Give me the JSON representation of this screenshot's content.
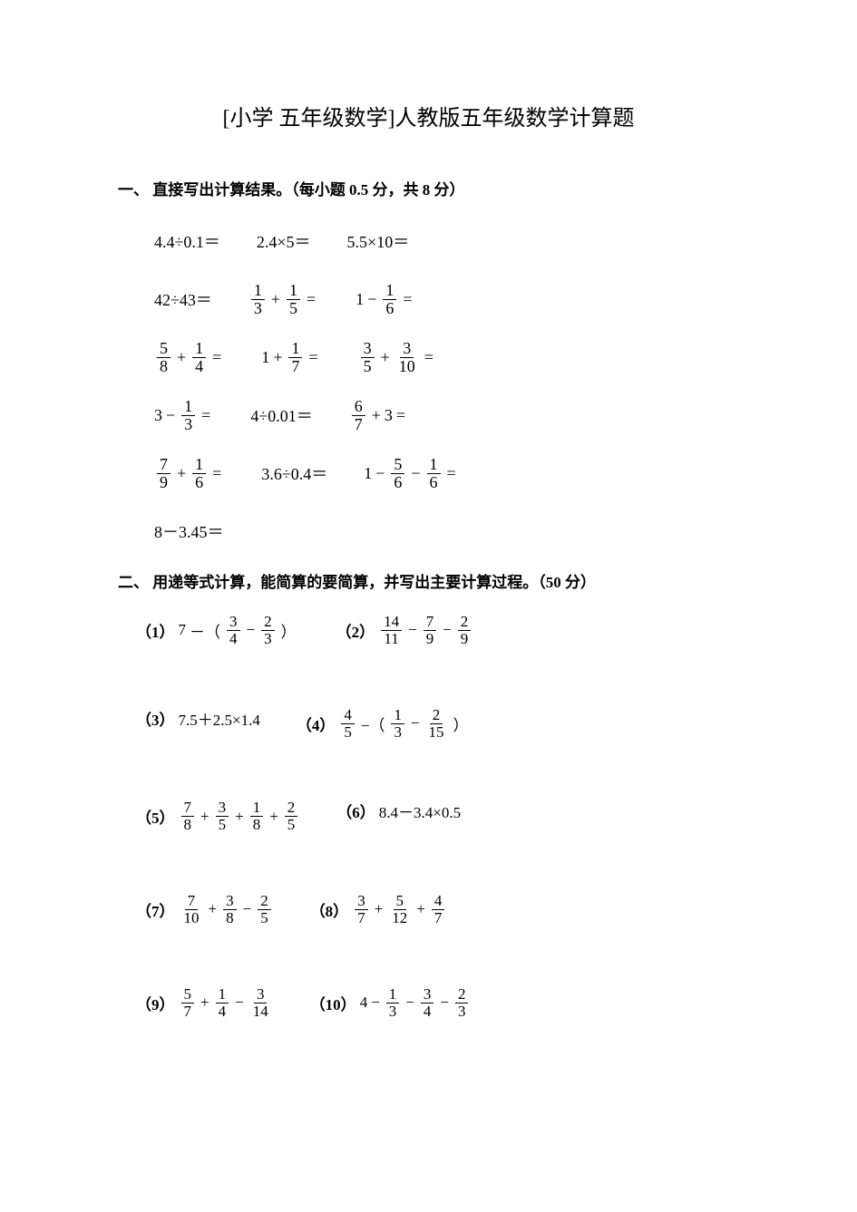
{
  "title": "[小学 五年级数学]人教版五年级数学计算题",
  "section1": {
    "header": "一、 直接写出计算结果。（每小题 0.5 分，共 8 分）",
    "rows": [
      [
        {
          "type": "plain",
          "text": "4.4÷0.1＝"
        },
        {
          "type": "plain",
          "text": "2.4×5＝"
        },
        {
          "type": "plain",
          "text": "5.5×10＝"
        }
      ],
      [
        {
          "type": "plain",
          "text": "42÷43＝"
        },
        {
          "type": "expr",
          "parts": [
            {
              "t": "frac",
              "n": "1",
              "d": "3"
            },
            {
              "t": "op",
              "v": "+"
            },
            {
              "t": "frac",
              "n": "1",
              "d": "5"
            },
            {
              "t": "op",
              "v": "="
            }
          ]
        },
        {
          "type": "expr",
          "parts": [
            {
              "t": "txt",
              "v": "1"
            },
            {
              "t": "op",
              "v": "−"
            },
            {
              "t": "frac",
              "n": "1",
              "d": "6"
            },
            {
              "t": "op",
              "v": "="
            }
          ]
        }
      ],
      [
        {
          "type": "expr",
          "parts": [
            {
              "t": "frac",
              "n": "5",
              "d": "8"
            },
            {
              "t": "op",
              "v": "+"
            },
            {
              "t": "frac",
              "n": "1",
              "d": "4"
            },
            {
              "t": "op",
              "v": "="
            }
          ]
        },
        {
          "type": "expr",
          "parts": [
            {
              "t": "txt",
              "v": "1"
            },
            {
              "t": "op",
              "v": "+"
            },
            {
              "t": "frac",
              "n": "1",
              "d": "7"
            },
            {
              "t": "op",
              "v": "="
            }
          ]
        },
        {
          "type": "expr",
          "parts": [
            {
              "t": "frac",
              "n": "3",
              "d": "5"
            },
            {
              "t": "op",
              "v": "+"
            },
            {
              "t": "frac",
              "n": "3",
              "d": "10"
            },
            {
              "t": "op",
              "v": "="
            }
          ]
        }
      ],
      [
        {
          "type": "expr",
          "parts": [
            {
              "t": "txt",
              "v": "3"
            },
            {
              "t": "op",
              "v": "−"
            },
            {
              "t": "frac",
              "n": "1",
              "d": "3"
            },
            {
              "t": "op",
              "v": "="
            }
          ]
        },
        {
          "type": "plain",
          "text": "4÷0.01＝"
        },
        {
          "type": "expr",
          "parts": [
            {
              "t": "frac",
              "n": "6",
              "d": "7"
            },
            {
              "t": "op",
              "v": "+"
            },
            {
              "t": "txt",
              "v": "3"
            },
            {
              "t": "op",
              "v": "="
            }
          ]
        }
      ],
      [
        {
          "type": "expr",
          "parts": [
            {
              "t": "frac",
              "n": "7",
              "d": "9"
            },
            {
              "t": "op",
              "v": "+"
            },
            {
              "t": "frac",
              "n": "1",
              "d": "6"
            },
            {
              "t": "op",
              "v": "="
            }
          ]
        },
        {
          "type": "plain",
          "text": "3.6÷0.4＝"
        },
        {
          "type": "expr",
          "parts": [
            {
              "t": "txt",
              "v": "1"
            },
            {
              "t": "op",
              "v": "−"
            },
            {
              "t": "frac",
              "n": "5",
              "d": "6"
            },
            {
              "t": "op",
              "v": "−"
            },
            {
              "t": "frac",
              "n": "1",
              "d": "6"
            },
            {
              "t": "op",
              "v": "="
            }
          ]
        }
      ],
      [
        {
          "type": "plain",
          "text": "8－3.45＝"
        }
      ]
    ]
  },
  "section2": {
    "header": "二、 用递等式计算，能简算的要简算，并写出主要计算过程。（50 分）",
    "rows": [
      [
        {
          "num": "（1）",
          "parts": [
            {
              "t": "txt",
              "v": "7"
            },
            {
              "t": "op",
              "v": "－（"
            },
            {
              "t": "frac",
              "n": "3",
              "d": "4"
            },
            {
              "t": "op",
              "v": "−"
            },
            {
              "t": "frac",
              "n": "2",
              "d": "3"
            },
            {
              "t": "op",
              "v": "）"
            }
          ]
        },
        {
          "num": "（2）",
          "parts": [
            {
              "t": "frac",
              "n": "14",
              "d": "11"
            },
            {
              "t": "op",
              "v": "−"
            },
            {
              "t": "frac",
              "n": "7",
              "d": "9"
            },
            {
              "t": "op",
              "v": "−"
            },
            {
              "t": "frac",
              "n": "2",
              "d": "9"
            }
          ]
        }
      ],
      [
        {
          "num": "（3）",
          "parts": [
            {
              "t": "txt",
              "v": "7.5＋2.5×1.4"
            }
          ]
        },
        {
          "num": "（4）",
          "parts": [
            {
              "t": "frac",
              "n": "4",
              "d": "5"
            },
            {
              "t": "op",
              "v": "−（"
            },
            {
              "t": "frac",
              "n": "1",
              "d": "3"
            },
            {
              "t": "op",
              "v": "−"
            },
            {
              "t": "frac",
              "n": "2",
              "d": "15"
            },
            {
              "t": "op",
              "v": "）"
            }
          ]
        }
      ],
      [
        {
          "num": "（5）",
          "parts": [
            {
              "t": "frac",
              "n": "7",
              "d": "8"
            },
            {
              "t": "op",
              "v": "+"
            },
            {
              "t": "frac",
              "n": "3",
              "d": "5"
            },
            {
              "t": "op",
              "v": " + "
            },
            {
              "t": "frac",
              "n": "1",
              "d": "8"
            },
            {
              "t": "op",
              "v": "+ "
            },
            {
              "t": "frac",
              "n": "2",
              "d": "5"
            }
          ]
        },
        {
          "num": "（6）",
          "parts": [
            {
              "t": "txt",
              "v": "8.4－3.4×0.5"
            }
          ]
        }
      ],
      [
        {
          "num": "（7）",
          "parts": [
            {
              "t": "frac",
              "n": "7",
              "d": "10"
            },
            {
              "t": "op",
              "v": "+"
            },
            {
              "t": "frac",
              "n": "3",
              "d": "8"
            },
            {
              "t": "op",
              "v": " − "
            },
            {
              "t": "frac",
              "n": "2",
              "d": "5"
            }
          ]
        },
        {
          "num": "（8）",
          "parts": [
            {
              "t": "frac",
              "n": "3",
              "d": "7"
            },
            {
              "t": "op",
              "v": "+"
            },
            {
              "t": "frac",
              "n": "5",
              "d": "12"
            },
            {
              "t": "op",
              "v": "+ "
            },
            {
              "t": "frac",
              "n": "4",
              "d": "7"
            }
          ]
        }
      ],
      [
        {
          "num": "（9）",
          "parts": [
            {
              "t": "frac",
              "n": "5",
              "d": "7"
            },
            {
              "t": "op",
              "v": "+"
            },
            {
              "t": "frac",
              "n": "1",
              "d": "4"
            },
            {
              "t": "op",
              "v": " − "
            },
            {
              "t": "frac",
              "n": "3",
              "d": "14"
            }
          ]
        },
        {
          "num": "（10）",
          "parts": [
            {
              "t": "txt",
              "v": "4"
            },
            {
              "t": "op",
              "v": "−"
            },
            {
              "t": "frac",
              "n": "1",
              "d": "3"
            },
            {
              "t": "op",
              "v": "−"
            },
            {
              "t": "frac",
              "n": "3",
              "d": "4"
            },
            {
              "t": "op",
              "v": "− "
            },
            {
              "t": "frac",
              "n": "2",
              "d": "3"
            }
          ]
        }
      ]
    ]
  }
}
